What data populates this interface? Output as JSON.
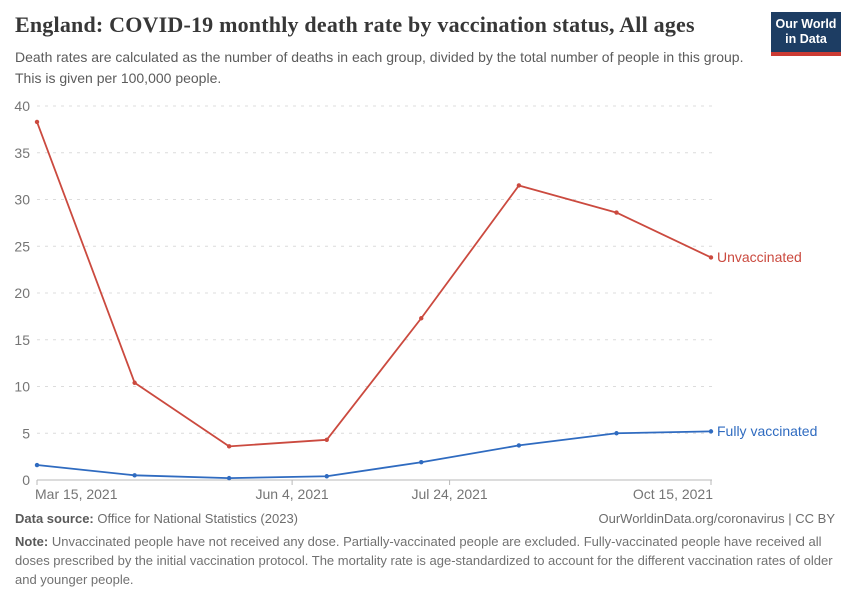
{
  "header": {
    "title": "England: COVID-19 monthly death rate by vaccination status, All ages",
    "subtitle": "Death rates are calculated as the number of deaths in each group, divided by the total number of people in this group. This is given per 100,000 people.",
    "logo_line1": "Our World",
    "logo_line2": "in Data",
    "logo_bg_color": "#1d3d63",
    "logo_stripe_color": "#cc3b33"
  },
  "chart_data": {
    "type": "line",
    "x": [
      "Mar 15, 2021",
      "Apr 15, 2021",
      "May 15, 2021",
      "Jun 15, 2021",
      "Jul 15, 2021",
      "Aug 15, 2021",
      "Sep 15, 2021",
      "Oct 15, 2021"
    ],
    "x_days": [
      0,
      31,
      61,
      92,
      122,
      153,
      184,
      214
    ],
    "series": [
      {
        "name": "Unvaccinated",
        "color": "#cb4a3f",
        "values": [
          38.3,
          10.4,
          3.6,
          4.3,
          17.3,
          31.5,
          28.6,
          23.8
        ]
      },
      {
        "name": "Fully vaccinated",
        "color": "#2f6bc0",
        "values": [
          1.6,
          0.5,
          0.2,
          0.4,
          1.9,
          3.7,
          5.0,
          5.2
        ]
      }
    ],
    "ylim": [
      0,
      40
    ],
    "yticks": [
      0,
      5,
      10,
      15,
      20,
      25,
      30,
      35,
      40
    ],
    "xticks": [
      {
        "label": "Mar 15, 2021",
        "day": 0,
        "anchor": "start"
      },
      {
        "label": "Jun 4, 2021",
        "day": 81,
        "anchor": "middle"
      },
      {
        "label": "Jul 24, 2021",
        "day": 131,
        "anchor": "middle"
      },
      {
        "label": "Oct 15, 2021",
        "day": 214,
        "anchor": "end"
      }
    ],
    "grid": "horizontal dashed",
    "legend_position": "labels at line ends (right)"
  },
  "footer": {
    "data_source_label": "Data source:",
    "data_source_value": "Office for National Statistics (2023)",
    "attribution": "OurWorldinData.org/coronavirus | CC BY",
    "note_label": "Note:",
    "note_text": "Unvaccinated people have not received any dose. Partially-vaccinated people are excluded. Fully-vaccinated people have received all doses prescribed by the initial vaccination protocol. The mortality rate is age-standardized to account for the different vaccination rates of older and younger people."
  }
}
